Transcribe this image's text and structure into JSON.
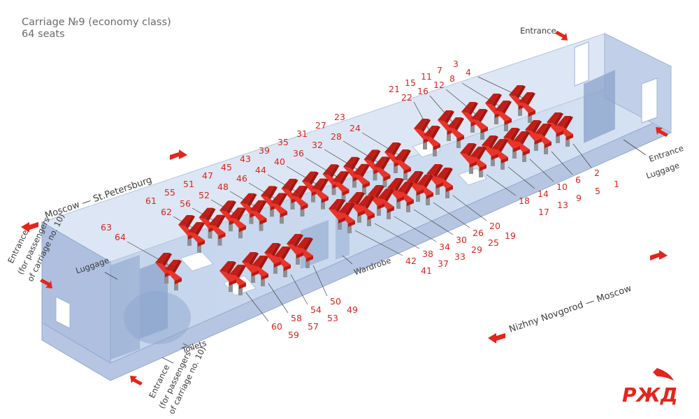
{
  "title": {
    "line1": "Carriage №9 (economy class)",
    "line2": "64 seats"
  },
  "labels": {
    "entrance_top": "Entrance",
    "entrance_right": "Entrance",
    "luggage_right": "Luggage",
    "entrance_left": [
      "Entrance",
      "(for passengers",
      "of carriage no. 10)"
    ],
    "luggage_left": "Luggage",
    "entrance_bottom": [
      "Entrance",
      "(for passengers",
      "of carriage no. 10)"
    ],
    "toilets": "Toilets",
    "wardrobe": "Wardrobe"
  },
  "directions": {
    "moscow_spb": "Moscow — St.Petersburg",
    "nn_moscow": "Nizhny Novgorod — Moscow"
  },
  "colors": {
    "seat": "#d8261c",
    "number": "#d8261c",
    "glass": "#9fb6d8",
    "logo": "#e2261c"
  },
  "logo": {
    "icon": "rzd-logo-icon",
    "text": "РЖД"
  },
  "seat_groups": [
    {
      "id": "b1",
      "back": [
        "3",
        "7",
        "11",
        "15",
        "21"
      ],
      "front": [
        "4",
        "8",
        "12",
        "16",
        "22"
      ]
    },
    {
      "id": "b2",
      "back": [
        "23",
        "27",
        "31",
        "35",
        "39",
        "43",
        "45",
        "47",
        "51",
        "55",
        "61"
      ],
      "front": [
        "24",
        "28",
        "32",
        "36",
        "40",
        "44",
        "46",
        "48",
        "52",
        "56",
        "62"
      ]
    },
    {
      "id": "b3",
      "back": [
        "63"
      ],
      "front": [
        "64"
      ]
    },
    {
      "id": "f1",
      "inner": [
        "2",
        "6",
        "10",
        "14",
        "18"
      ],
      "outer": [
        "1",
        "5",
        "9",
        "13",
        "17"
      ]
    },
    {
      "id": "f2",
      "inner": [
        "20",
        "26",
        "30",
        "34",
        "38",
        "42"
      ],
      "outer": [
        "19",
        "25",
        "29",
        "33",
        "37",
        "41"
      ]
    },
    {
      "id": "f3",
      "inner": [
        "50",
        "54",
        "58",
        "60"
      ],
      "outer": [
        "49",
        "53",
        "57",
        "59"
      ]
    }
  ]
}
